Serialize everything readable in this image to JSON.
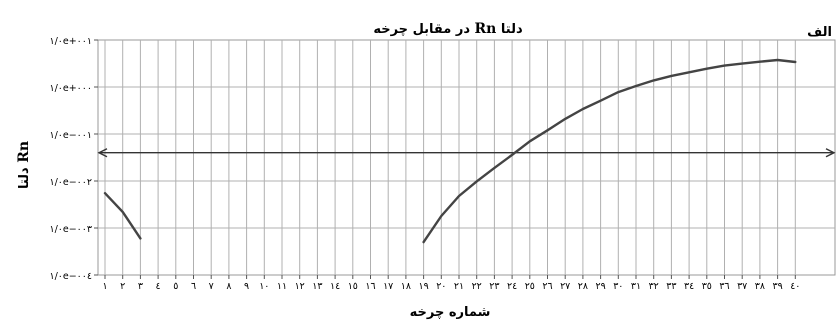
{
  "chart_data": {
    "type": "line",
    "panel_label": "الف",
    "title": {
      "prefix": "دلتا ",
      "bold": "Rn",
      "suffix": " در مقابل چرخه"
    },
    "xlabel": "شماره چرخه",
    "ylabel": {
      "bold": "Rn",
      "suffix": " دلتا"
    },
    "x_categories": [
      "۱",
      "۲",
      "۳",
      "٤",
      "٥",
      "٦",
      "٧",
      "٨",
      "٩",
      "١٠",
      "١١",
      "١٢",
      "١٣",
      "١٤",
      "١٥",
      "١٦",
      "١٧",
      "١٨",
      "١٩",
      "٢٠",
      "٢١",
      "٢٢",
      "٢٣",
      "٢٤",
      "٢٥",
      "٢٦",
      "٢٧",
      "٢٨",
      "٢٩",
      "٣٠",
      "٣١",
      "٣٢",
      "٣٣",
      "٣٤",
      "٣٥",
      "٣٦",
      "٣٧",
      "٣٨",
      "٣٩",
      "٤٠"
    ],
    "y_scale": "log",
    "y_ticks": [
      {
        "label": "۱/۰e+۰۰۱",
        "value": 10
      },
      {
        "label": "۱/۰e+۰۰۰",
        "value": 1
      },
      {
        "label": "۱/۰e−۰۰۱",
        "value": 0.1
      },
      {
        "label": "۱/۰e−۰۰۲",
        "value": 0.01
      },
      {
        "label": "۱/۰e−۰۰۳",
        "value": 0.001
      },
      {
        "label": "۱/۰e−۰۰٤",
        "value": 0.0001
      }
    ],
    "ylim": [
      0.0001,
      10
    ],
    "threshold": 0.04,
    "grid": true,
    "series": [
      {
        "color": "#444444",
        "segments": [
          [
            [
              1,
              0.0055
            ],
            [
              2,
              0.0022
            ],
            [
              3,
              0.0006
            ]
          ],
          [
            [
              19,
              0.0005
            ],
            [
              20,
              0.0018
            ],
            [
              21,
              0.0048
            ],
            [
              22,
              0.0098
            ],
            [
              23,
              0.019
            ],
            [
              24,
              0.036
            ],
            [
              25,
              0.07
            ],
            [
              26,
              0.12
            ],
            [
              27,
              0.21
            ],
            [
              28,
              0.34
            ],
            [
              29,
              0.51
            ],
            [
              30,
              0.78
            ],
            [
              31,
              1.05
            ],
            [
              32,
              1.38
            ],
            [
              33,
              1.72
            ],
            [
              34,
              2.05
            ],
            [
              35,
              2.45
            ],
            [
              36,
              2.85
            ],
            [
              37,
              3.15
            ],
            [
              38,
              3.45
            ],
            [
              39,
              3.75
            ],
            [
              40,
              3.4
            ]
          ]
        ]
      }
    ]
  }
}
